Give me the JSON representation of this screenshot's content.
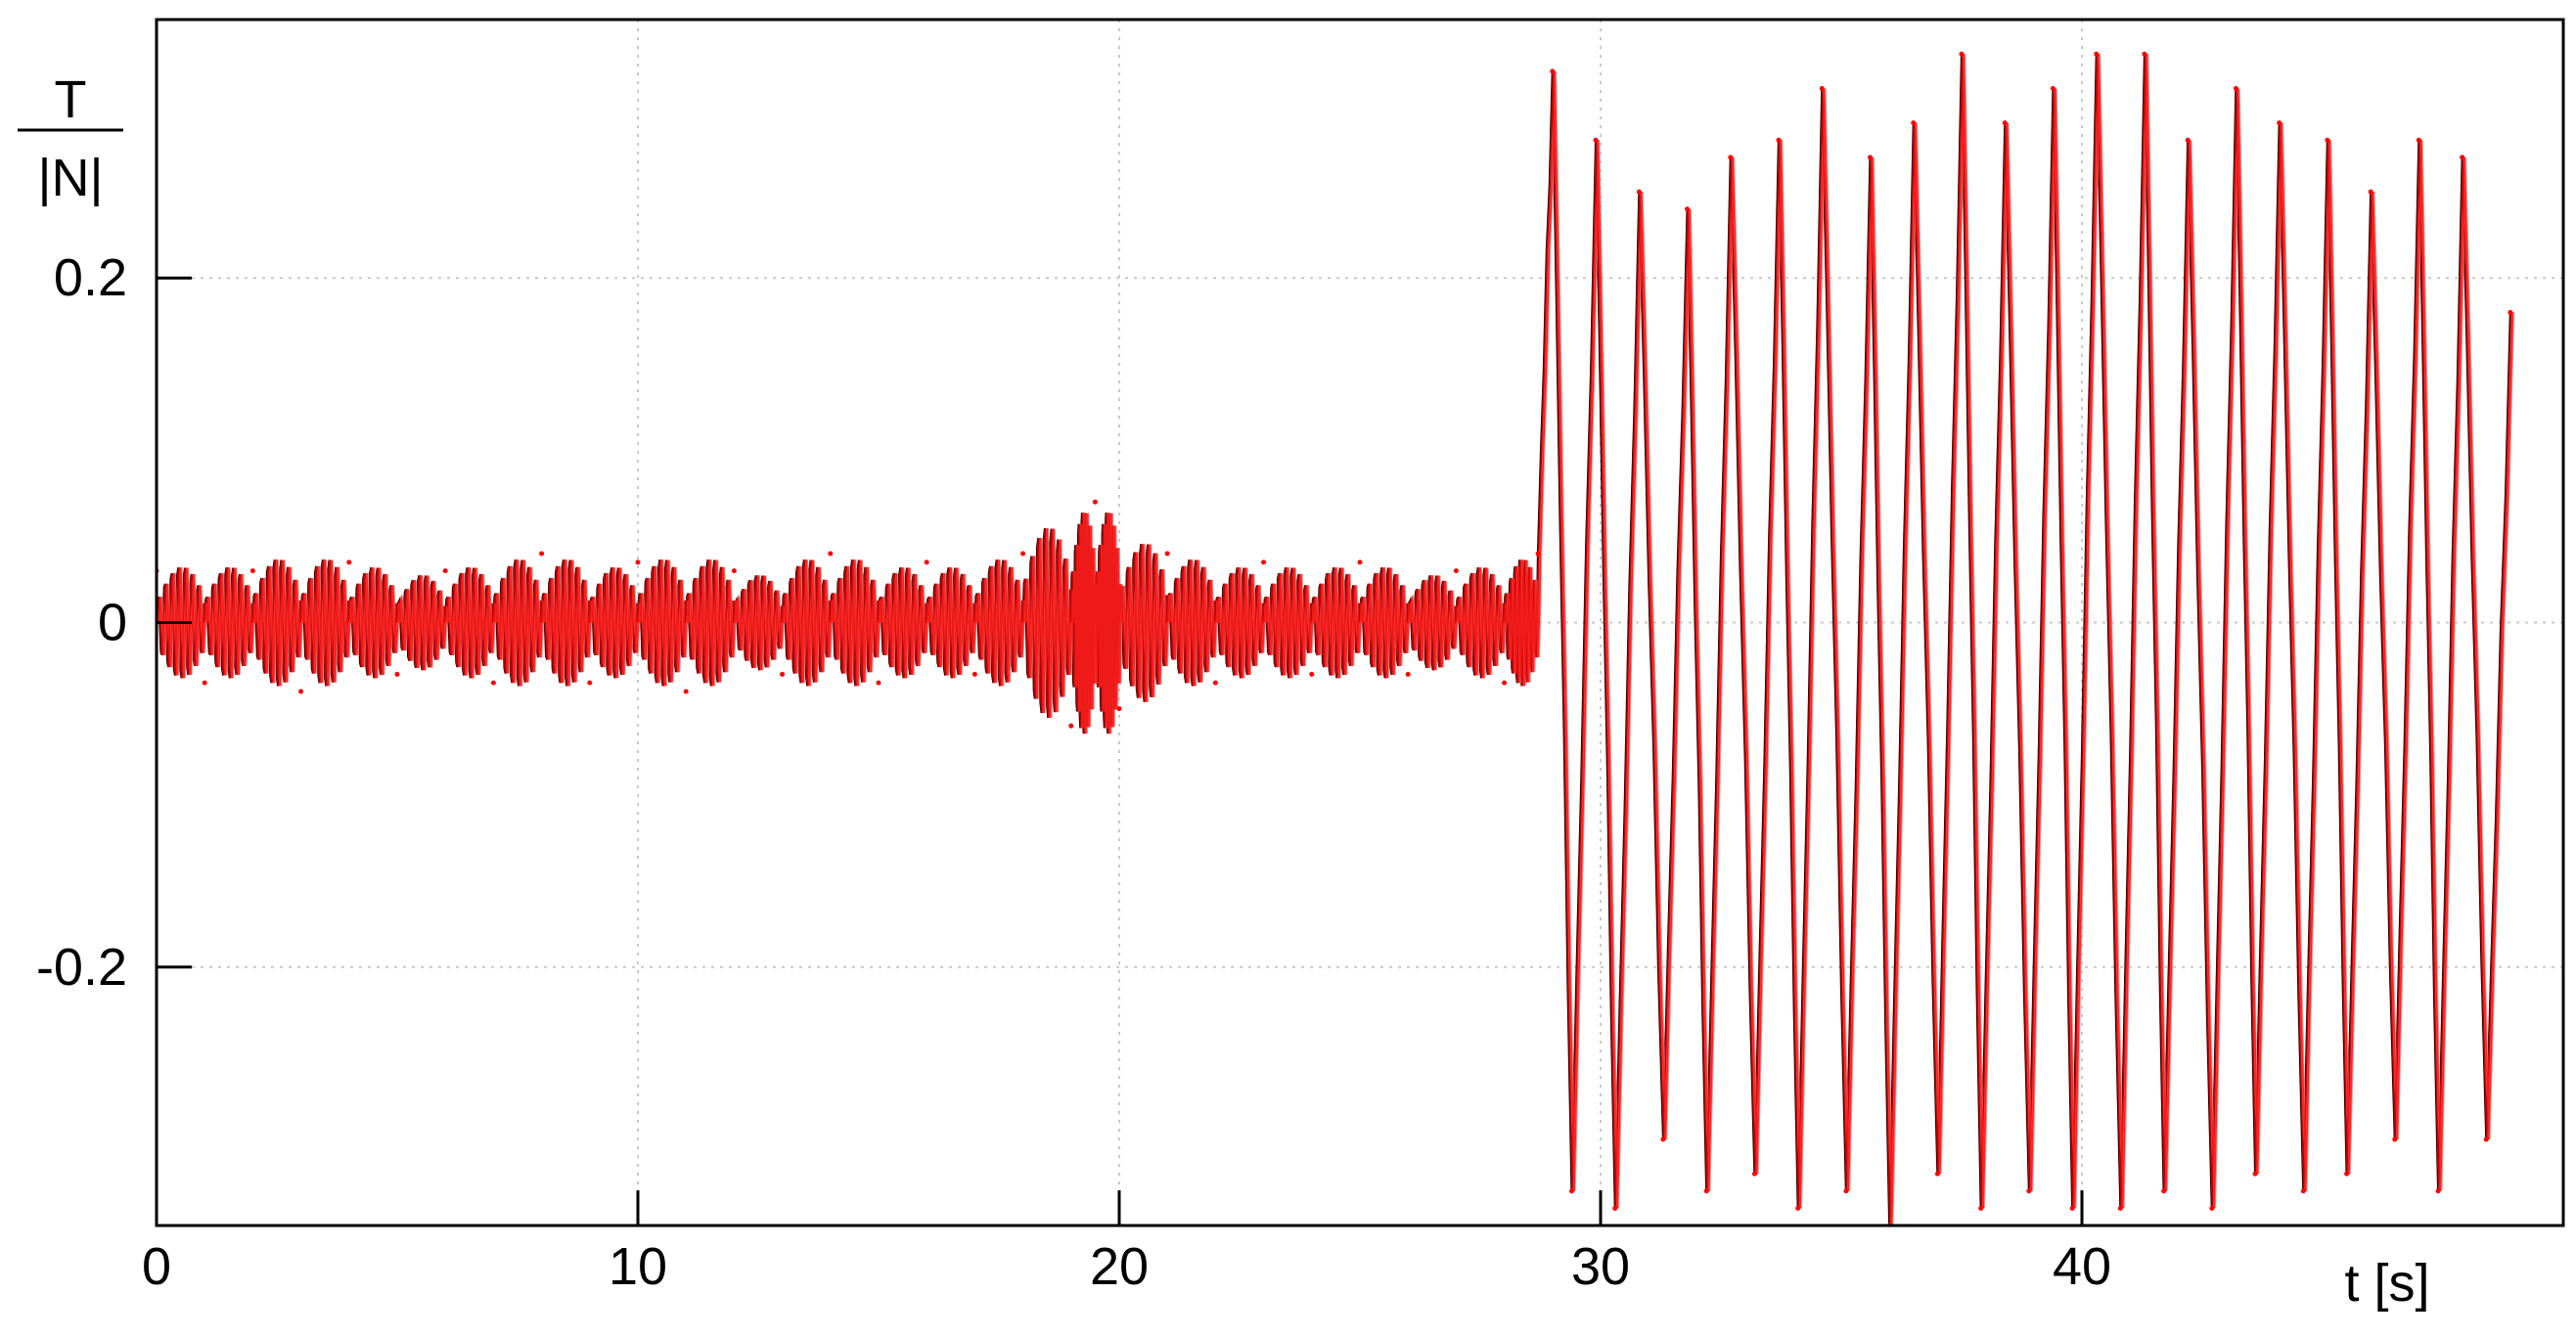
{
  "chart_data": {
    "type": "line",
    "title": "",
    "xlabel": "t [s]",
    "ylabel": {
      "numerator": "T",
      "denominator": "|N|"
    },
    "xlim": [
      0,
      50
    ],
    "ylim": [
      -0.35,
      0.35
    ],
    "x_ticks": [
      0,
      10,
      20,
      30,
      40
    ],
    "x_tick_labels": [
      "0",
      "10",
      "20",
      "30",
      "40"
    ],
    "y_ticks": [
      0.2,
      0,
      -0.2
    ],
    "y_tick_labels": [
      "0.2",
      "0",
      "-0.2"
    ],
    "grid": true,
    "colors": {
      "dark": "#000000",
      "red": "#ff0000",
      "pink": "#e88080"
    },
    "series": [
      {
        "x": [
          0.0,
          1.0,
          2.0,
          3.0,
          4.0,
          5.0,
          6.0,
          7.0,
          8.0,
          9.0,
          10.0,
          11.0,
          12.0,
          13.0,
          14.0,
          15.0,
          16.0,
          17.0,
          18.0,
          19.0,
          19.5,
          20.0,
          21.0,
          22.0,
          23.0,
          24.0,
          25.0,
          26.0,
          27.0,
          28.0,
          28.7,
          29.0,
          29.4,
          29.9,
          30.3,
          30.8,
          31.3,
          31.8,
          32.2,
          32.7,
          33.2,
          33.7,
          34.1,
          34.6,
          35.1,
          35.6,
          36.0,
          36.5,
          37.0,
          37.5,
          37.9,
          38.4,
          38.9,
          39.4,
          39.8,
          40.3,
          40.8,
          41.3,
          41.7,
          42.2,
          42.7,
          43.2,
          43.6,
          44.1,
          44.6,
          45.1,
          45.5,
          46.0,
          46.5,
          47.0,
          47.4,
          47.9,
          48.4,
          48.9
        ],
        "y": [
          0.03,
          -0.035,
          0.03,
          -0.04,
          0.035,
          -0.03,
          0.03,
          -0.035,
          0.04,
          -0.035,
          0.035,
          -0.04,
          0.03,
          -0.03,
          0.04,
          -0.035,
          0.035,
          -0.03,
          0.04,
          -0.06,
          0.07,
          -0.05,
          0.04,
          -0.035,
          0.035,
          -0.03,
          0.035,
          -0.03,
          0.03,
          -0.035,
          0.04,
          0.32,
          -0.33,
          0.28,
          -0.34,
          0.25,
          -0.3,
          0.24,
          -0.33,
          0.27,
          -0.32,
          0.28,
          -0.34,
          0.31,
          -0.33,
          0.27,
          -0.35,
          0.29,
          -0.32,
          0.33,
          -0.34,
          0.29,
          -0.33,
          0.31,
          -0.34,
          0.33,
          -0.34,
          0.33,
          -0.33,
          0.28,
          -0.34,
          0.31,
          -0.32,
          0.29,
          -0.33,
          0.28,
          -0.32,
          0.25,
          -0.3,
          0.28,
          -0.33,
          0.27,
          -0.3,
          0.18
        ]
      }
    ]
  }
}
